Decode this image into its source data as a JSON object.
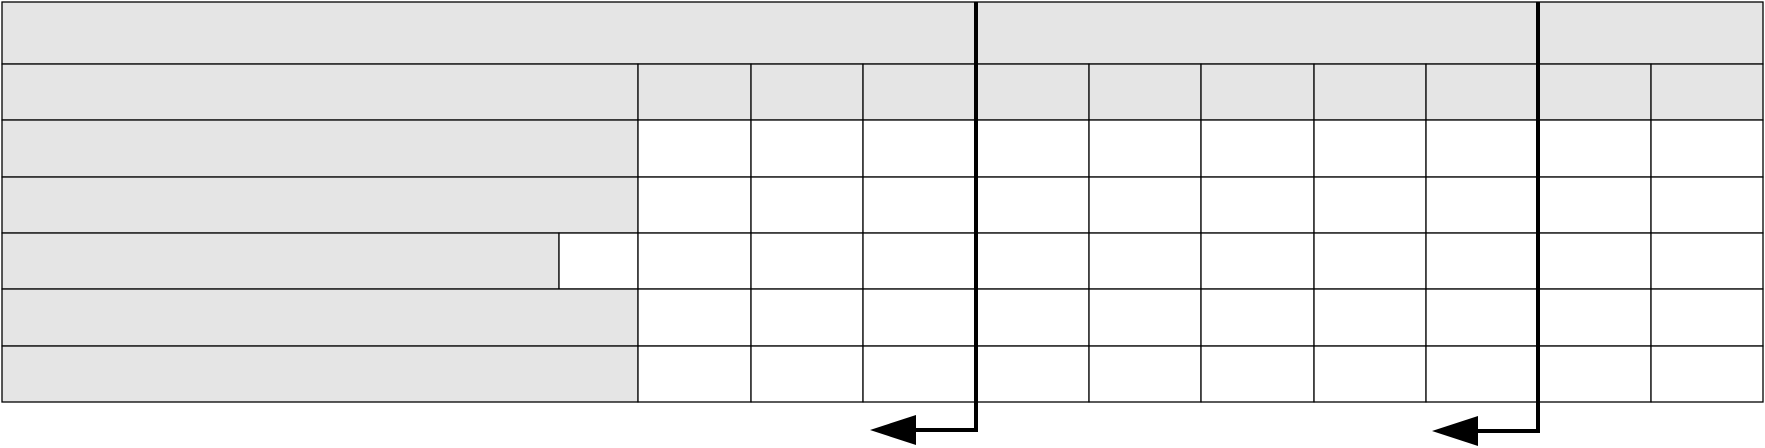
{
  "colors": {
    "header_fill": "#e5e5e5",
    "cell_fill": "#ffffff",
    "grid_line": "#000000",
    "arrow": "#000000"
  },
  "diagram": {
    "arrows": [
      {
        "direction": "down-then-left"
      },
      {
        "direction": "down-then-left"
      }
    ]
  }
}
